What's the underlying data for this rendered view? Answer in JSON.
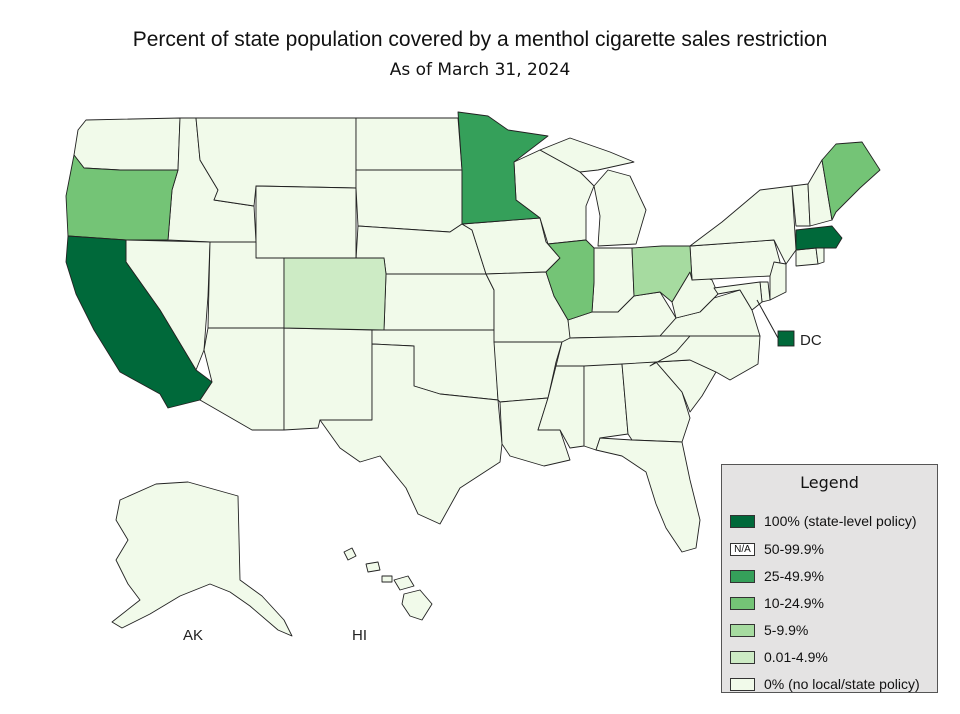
{
  "title": "Percent of state population covered by a menthol cigarette sales restriction",
  "subtitle": "As of March 31, 2024",
  "colors": {
    "c100": "#00693a",
    "c50": "#1d8f4a",
    "c25": "#35a05a",
    "c10": "#74c476",
    "c5": "#a6dba0",
    "c001": "#cdebc5",
    "c0": "#f1faea"
  },
  "map_labels": {
    "dc": "DC",
    "ak": "AK",
    "hi": "HI"
  },
  "legend": {
    "title": "Legend",
    "items": [
      {
        "label": "100% (state-level policy)",
        "color": "#00693a",
        "swatch_text": ""
      },
      {
        "label": "50-99.9%",
        "color": "#ffffff",
        "swatch_text": "N/A"
      },
      {
        "label": "25-49.9%",
        "color": "#35a05a",
        "swatch_text": ""
      },
      {
        "label": "10-24.9%",
        "color": "#74c476",
        "swatch_text": ""
      },
      {
        "label": "5-9.9%",
        "color": "#a6dba0",
        "swatch_text": ""
      },
      {
        "label": "0.01-4.9%",
        "color": "#cdebc5",
        "swatch_text": ""
      },
      {
        "label": "0% (no local/state policy)",
        "color": "#f1faea",
        "swatch_text": ""
      }
    ]
  },
  "states": {
    "California": "100%",
    "Massachusetts": "100%",
    "District of Columbia": "100%",
    "Minnesota": "25-49.9%",
    "Oregon": "10-24.9%",
    "Illinois": "10-24.9%",
    "Maine": "10-24.9%",
    "Ohio": "5-9.9%",
    "Colorado": "0.01-4.9%",
    "Other states": "0%"
  }
}
